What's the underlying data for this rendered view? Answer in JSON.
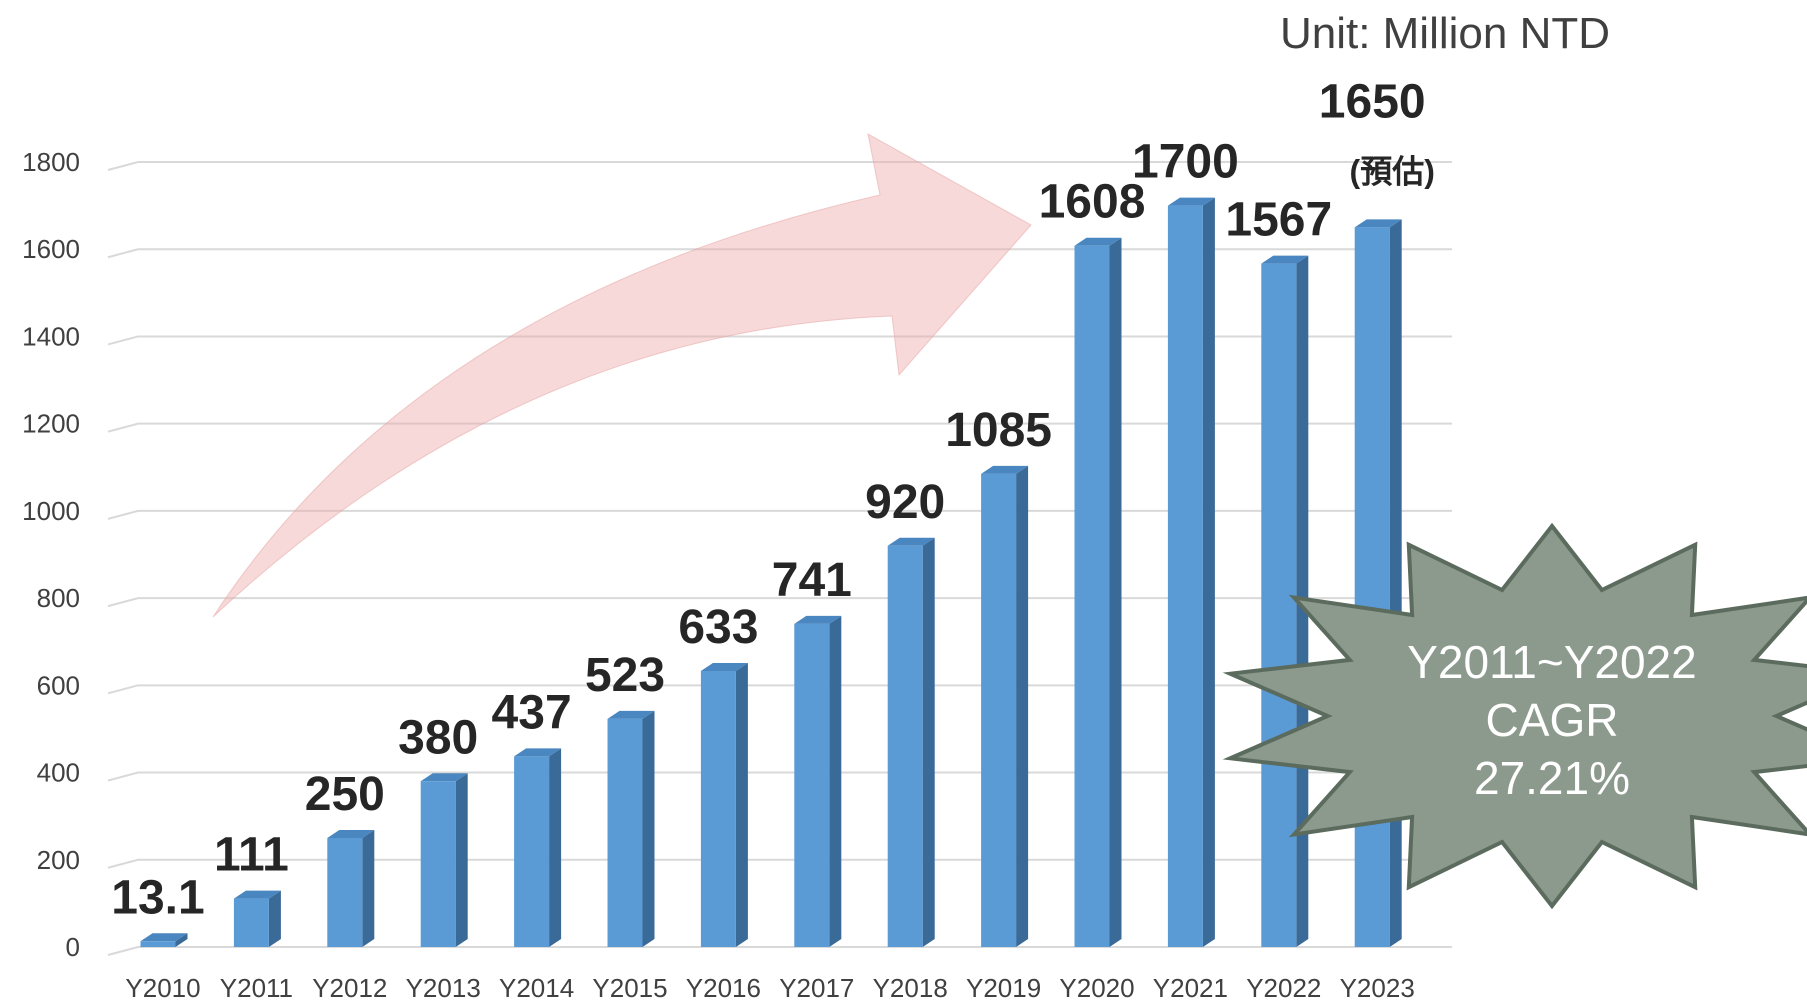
{
  "chart_data": {
    "type": "bar3d",
    "subtitle": "Unit: Million NTD",
    "categories": [
      "Y2010",
      "Y2011",
      "Y2012",
      "Y2013",
      "Y2014",
      "Y2015",
      "Y2016",
      "Y2017",
      "Y2018",
      "Y2019",
      "Y2020",
      "Y2021",
      "Y2022",
      "Y2023"
    ],
    "values": [
      13.1,
      111,
      250,
      380,
      437,
      523,
      633,
      741,
      920,
      1085,
      1608,
      1700,
      1567,
      1650
    ],
    "color": "#5b9bd5",
    "ylim": [
      0,
      1800
    ],
    "yticks": [
      0,
      200,
      400,
      600,
      800,
      1000,
      1200,
      1400,
      1600,
      1800
    ],
    "grid": true,
    "annotations": [
      "(預估)"
    ],
    "callout": [
      "Y2011~Y2022",
      "CAGR",
      "27.21%"
    ]
  }
}
